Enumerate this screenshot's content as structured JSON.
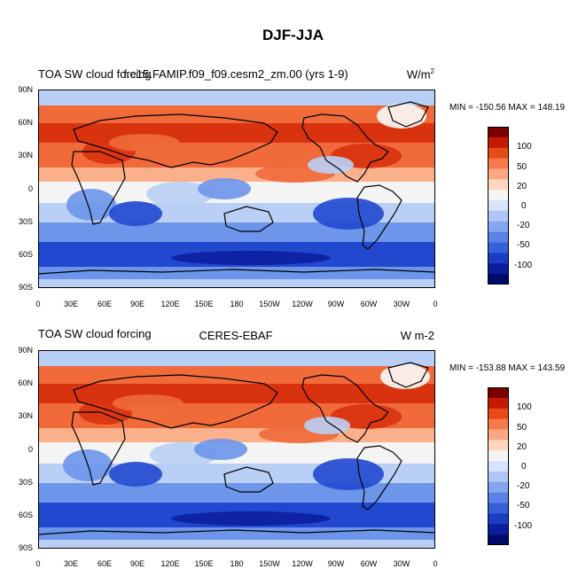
{
  "title": "DJF-JJA",
  "panels": [
    {
      "left_title": "TOA SW cloud forcing",
      "center_title": "f.e15.FAMIP.f09_f09.cesm2_zm.00 (yrs 1-9)",
      "units": "W/m",
      "units_sup": "2",
      "stats": "MIN = -150.56 MAX = 148.19"
    },
    {
      "left_title": "TOA SW cloud forcing",
      "center_title": "CERES-EBAF",
      "units": "W m-2",
      "units_sup": "",
      "stats": "MIN = -153.88 MAX = 143.59"
    }
  ],
  "lat_labels": [
    "90N",
    "60N",
    "30N",
    "0",
    "30S",
    "60S",
    "90S"
  ],
  "lon_labels": [
    "0",
    "30E",
    "60E",
    "90E",
    "120E",
    "150E",
    "180",
    "150W",
    "120W",
    "90W",
    "60W",
    "30W",
    "0"
  ],
  "colorbar_labels": [
    "100",
    "50",
    "20",
    "0",
    "-20",
    "-50",
    "-100"
  ],
  "colorbar_colors": [
    "#7a0000",
    "#c51a00",
    "#e64a16",
    "#f77a4a",
    "#fca783",
    "#fed6bd",
    "#f4f4f4",
    "#d7e3f9",
    "#aec6f5",
    "#84a6ef",
    "#5b83e6",
    "#3560d8",
    "#1a3dc2",
    "#0a1e9c",
    "#000a6a"
  ],
  "field_colors": {
    "strong_pos": "#d8320e",
    "pos": "#f06a3a",
    "weak_pos": "#fbb08c",
    "neutral": "#f4f4f4",
    "weak_neg": "#b9cff5",
    "neg": "#6d95ea",
    "strong_neg": "#2148cf",
    "deep_neg": "#0b1f9e",
    "land_white": "#fafafa"
  }
}
